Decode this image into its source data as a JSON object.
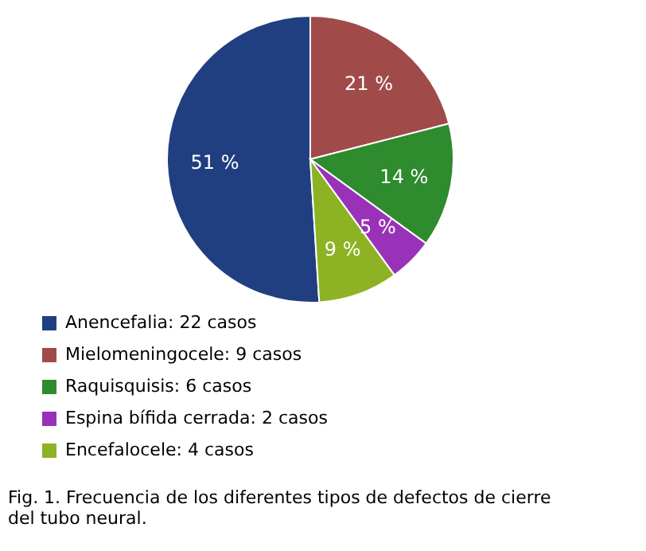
{
  "chart_data": {
    "type": "pie",
    "categories": [
      "Anencefalia: 22 casos",
      "Mielomeningocele: 9 casos",
      "Raquisquisis: 6 casos",
      "Espina bífida cerrada: 2 casos",
      "Encefalocele: 4 casos"
    ],
    "values": [
      51,
      21,
      14,
      5,
      9
    ],
    "colors": [
      "#1f3f80",
      "#a04a4a",
      "#2e8b2e",
      "#9932b8",
      "#8db224"
    ],
    "value_labels": [
      "51 %",
      "21 %",
      "14 %",
      "5 %",
      "9 %"
    ],
    "legend": "bottom left",
    "annotations": [
      "Fig. 1. Frecuencia de los diferentes tipos de defectos de cierre del tubo neural."
    ]
  }
}
